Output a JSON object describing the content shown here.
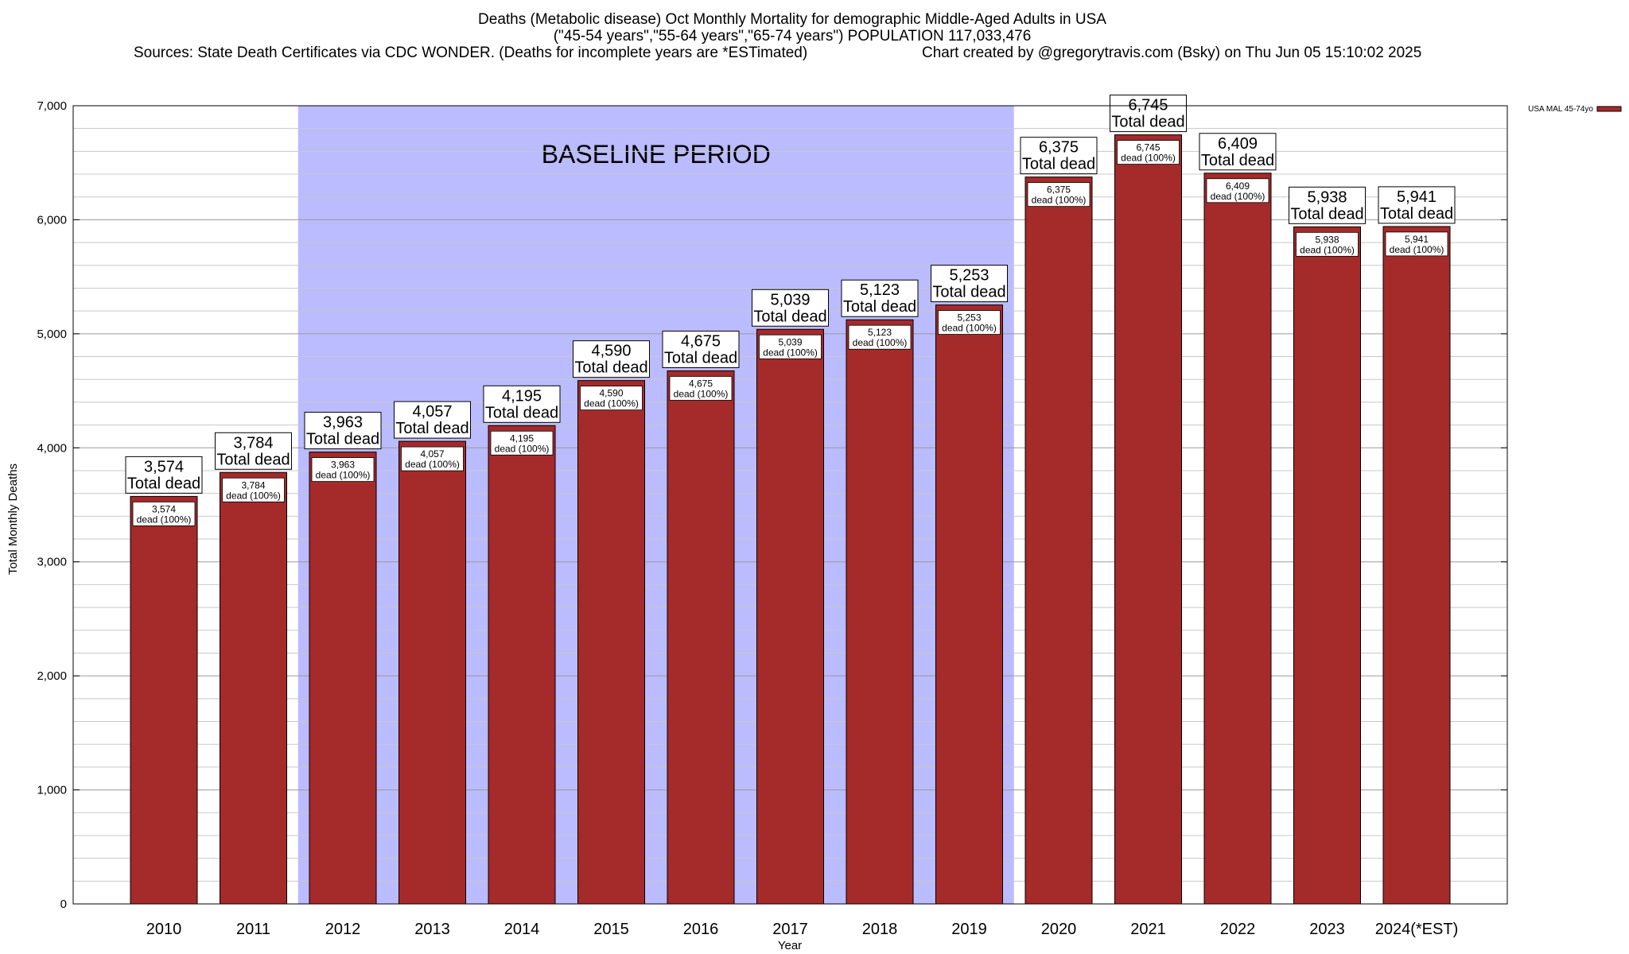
{
  "chart_data": {
    "type": "bar",
    "title": "Deaths (Metabolic disease) Oct Monthly Mortality for demographic Middle-Aged Adults in USA",
    "subtitle": "(\"45-54 years\",\"55-64 years\",\"65-74 years\") POPULATION 117,033,476",
    "source": "Sources: State Death Certificates via CDC WONDER. (Deaths for incomplete years are *ESTimated)",
    "credit": "Chart created by @gregorytravis.com (Bsky) on Thu Jun 05 15:10:02 2025",
    "xlabel": "Year",
    "ylabel": "Total Monthly Deaths",
    "ylim": [
      0,
      7000
    ],
    "yticks": [
      0,
      1000,
      2000,
      3000,
      4000,
      5000,
      6000,
      7000
    ],
    "ytick_labels": [
      "0",
      "1,000",
      "2,000",
      "3,000",
      "4,000",
      "5,000",
      "6,000",
      "7,000"
    ],
    "categories": [
      "2010",
      "2011",
      "2012",
      "2013",
      "2014",
      "2015",
      "2016",
      "2017",
      "2018",
      "2019",
      "2020",
      "2021",
      "2022",
      "2023",
      "2024(*EST)"
    ],
    "series": [
      {
        "name": "USA MAL 45-74yo",
        "color": "#a52a2a",
        "values": [
          3574,
          3784,
          3963,
          4057,
          4195,
          4590,
          4675,
          5039,
          5123,
          5253,
          6375,
          6745,
          6409,
          5938,
          5941
        ]
      }
    ],
    "value_labels": [
      "3,574",
      "3,784",
      "3,963",
      "4,057",
      "4,195",
      "4,590",
      "4,675",
      "5,039",
      "5,123",
      "5,253",
      "6,375",
      "6,745",
      "6,409",
      "5,938",
      "5,941"
    ],
    "total_label": "Total dead",
    "inner_label_suffix": "dead (100%)",
    "baseline": {
      "label": "BASELINE PERIOD",
      "from": "2012",
      "to": "2019",
      "color": "#bbbbff"
    },
    "grid": true,
    "legend": "top-right"
  }
}
